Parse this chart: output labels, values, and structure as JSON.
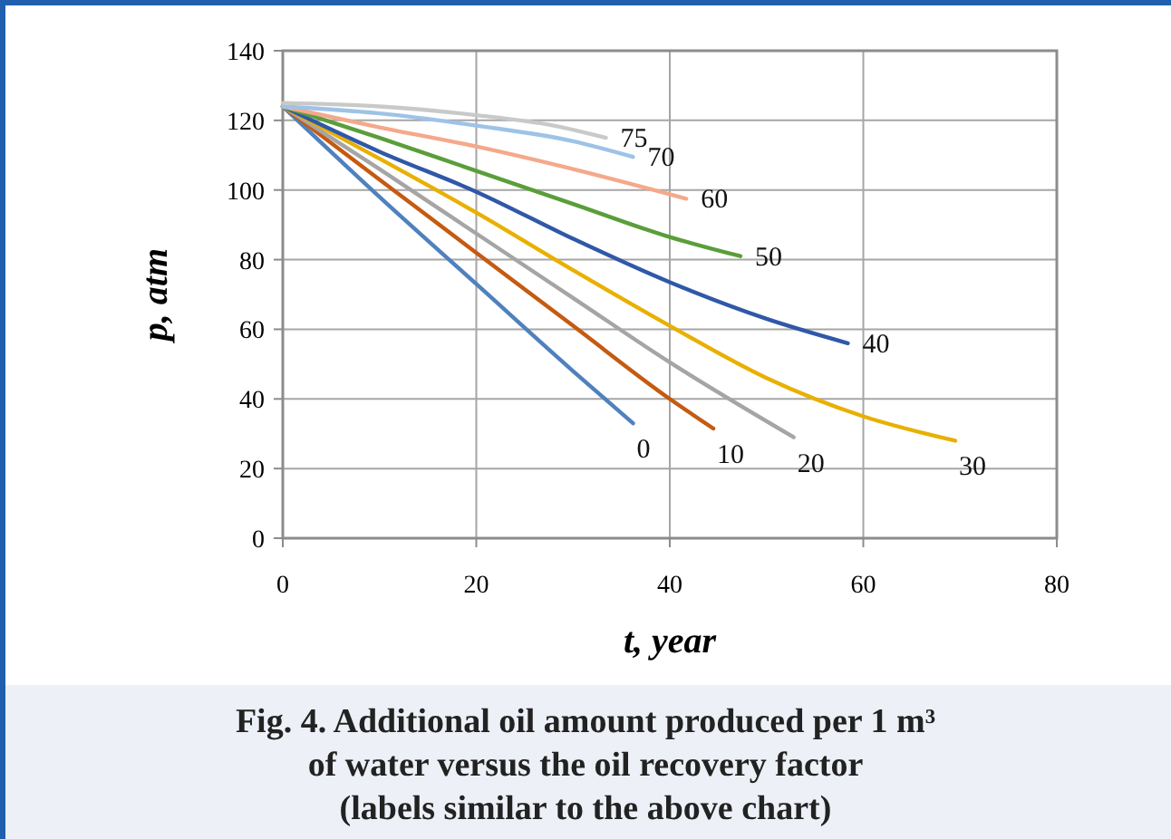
{
  "chart_data": {
    "type": "line",
    "title": "Fig. 4. Additional oil amount produced per 1 m³ of water versus the oil recovery factor (labels similar to the above chart)",
    "xlabel": "t, year",
    "ylabel": "p, atm",
    "xlim": [
      0,
      80
    ],
    "xticks": [
      0,
      20,
      40,
      60,
      80
    ],
    "ylim": [
      0,
      140
    ],
    "yticks": [
      0,
      20,
      40,
      60,
      80,
      100,
      120,
      140
    ],
    "grid": true,
    "marker": "none",
    "line_style": "solid",
    "series": [
      {
        "name": "0",
        "color": "#4f81bd",
        "x": [
          0,
          10,
          20,
          30,
          36.2
        ],
        "values": [
          124,
          98,
          73,
          48,
          33
        ]
      },
      {
        "name": "10",
        "color": "#c55a11",
        "x": [
          0,
          10,
          20,
          30,
          40,
          44.5
        ],
        "values": [
          124,
          103,
          82,
          61,
          40,
          31.5
        ]
      },
      {
        "name": "20",
        "color": "#a5a5a5",
        "x": [
          0,
          10,
          20,
          30,
          40,
          52.8
        ],
        "values": [
          124,
          106,
          87.5,
          69,
          50.5,
          29
        ]
      },
      {
        "name": "30",
        "color": "#e8b000",
        "x": [
          0,
          10,
          20,
          30,
          40,
          50,
          60,
          69.5
        ],
        "values": [
          124,
          109,
          93.5,
          77,
          61,
          46,
          35,
          28
        ]
      },
      {
        "name": "40",
        "color": "#3058a8",
        "x": [
          0,
          10,
          20,
          30,
          40,
          50,
          58.4
        ],
        "values": [
          124,
          111,
          99.5,
          86,
          73.5,
          63,
          56
        ]
      },
      {
        "name": "50",
        "color": "#5a9e3a",
        "x": [
          0,
          10,
          20,
          30,
          40,
          47.3
        ],
        "values": [
          124,
          115,
          105.5,
          96,
          86.5,
          81
        ]
      },
      {
        "name": "60",
        "color": "#f4a98a",
        "x": [
          0,
          10,
          20,
          30,
          41.7
        ],
        "values": [
          124,
          118,
          112.5,
          106,
          97.5
        ]
      },
      {
        "name": "70",
        "color": "#9dc3e6",
        "x": [
          0,
          10,
          20,
          30,
          36.2
        ],
        "values": [
          124,
          122,
          118.5,
          114,
          109.5
        ]
      },
      {
        "name": "75",
        "color": "#c9c9c9",
        "x": [
          0,
          10,
          20,
          28,
          33.4
        ],
        "values": [
          125,
          124,
          121.5,
          118.5,
          115
        ]
      }
    ]
  }
}
